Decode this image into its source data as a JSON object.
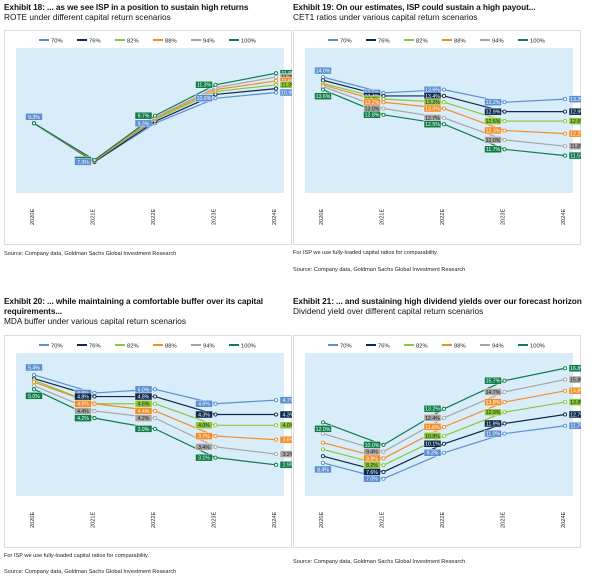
{
  "colors": {
    "70%": "#5b8fd1",
    "76%": "#0d2b4e",
    "82%": "#8cc63f",
    "88%": "#f28c28",
    "94%": "#a6a6a6",
    "100%": "#0e7d4a",
    "plot_bg": "#d9ecf9"
  },
  "legend_order": [
    "70%",
    "76%",
    "82%",
    "88%",
    "94%",
    "100%"
  ],
  "exhibits": [
    {
      "title": "Exhibit 18: ... as we see ISP in a position to sustain high returns",
      "subtitle": "ROTE under different capital return scenarios",
      "note": "",
      "source": "Source: Company data, Goldman Sachs Global Investment Research"
    },
    {
      "title": "Exhibit 19: On our estimates, ISP could sustain a high payout...",
      "subtitle": "CET1 ratios under various capital return scenarios",
      "note": "For ISP we use fully-loaded capital ratios for comparability.",
      "source": "Source: Company data, Goldman Sachs Global Investment Research"
    },
    {
      "title": "Exhibit 20: ... while maintaining a comfortable buffer over its capital requirements...",
      "subtitle": "MDA buffer under various capital return scenarios",
      "note": "For ISP we use fully-loaded capital ratios for comparability.",
      "source": "Source: Company data, Goldman Sachs Global Investment Research"
    },
    {
      "title": "Exhibit 21: ... and sustaining high dividend yields over our forecast horizon",
      "subtitle": "Dividend yield over different capital return scenarios",
      "note": "",
      "source": "Source: Company data, Goldman Sachs Global Investment Research"
    }
  ],
  "chart_data": [
    {
      "type": "line",
      "categories": [
        "2020E",
        "2021E",
        "2022E",
        "2023E",
        "2024E"
      ],
      "ylim": [
        6,
        13
      ],
      "series": [
        {
          "name": "70%",
          "values": [
            9.3,
            7.3,
            9.3,
            10.6,
            10.9
          ]
        },
        {
          "name": "76%",
          "values": [
            9.3,
            7.3,
            9.4,
            10.8,
            11.1
          ]
        },
        {
          "name": "82%",
          "values": [
            9.3,
            7.35,
            9.5,
            10.95,
            11.3
          ]
        },
        {
          "name": "88%",
          "values": [
            9.3,
            7.35,
            9.55,
            11.05,
            11.5
          ]
        },
        {
          "name": "94%",
          "values": [
            9.3,
            7.4,
            9.6,
            11.15,
            11.7
          ]
        },
        {
          "name": "100%",
          "values": [
            9.3,
            7.4,
            9.7,
            11.3,
            11.9
          ]
        }
      ],
      "labels": [
        {
          "series": "100%",
          "index": 3,
          "text": "11.3%"
        },
        {
          "series": "70%",
          "index": 3,
          "text": "10.6%"
        },
        {
          "series": "100%",
          "index": 2,
          "text": "9.7%"
        },
        {
          "series": "70%",
          "index": 2,
          "text": "9.3%"
        },
        {
          "series": "100%",
          "index": 1,
          "text": "7.4%"
        },
        {
          "series": "70%",
          "index": 1,
          "text": "7.3%"
        },
        {
          "series": "70%",
          "index": 0,
          "text": "9.3%"
        },
        {
          "series": "100%",
          "index": 4,
          "text": "11.9%"
        },
        {
          "series": "94%",
          "index": 4,
          "text": "11.7%"
        },
        {
          "series": "88%",
          "index": 4,
          "text": "11.5%"
        },
        {
          "series": "82%",
          "index": 4,
          "text": "11.3%"
        },
        {
          "series": "70%",
          "index": 4,
          "text": "10.9%"
        }
      ]
    },
    {
      "type": "line",
      "categories": [
        "2020E",
        "2021E",
        "2022E",
        "2023E",
        "2024E"
      ],
      "ylim": [
        10.5,
        14.8
      ],
      "series": [
        {
          "name": "70%",
          "values": [
            14.0,
            13.5,
            13.6,
            13.2,
            13.3
          ]
        },
        {
          "name": "76%",
          "values": [
            13.9,
            13.4,
            13.4,
            12.9,
            12.9
          ]
        },
        {
          "name": "82%",
          "values": [
            13.8,
            13.3,
            13.2,
            12.6,
            12.6
          ]
        },
        {
          "name": "88%",
          "values": [
            13.75,
            13.2,
            13.0,
            12.3,
            12.2
          ]
        },
        {
          "name": "94%",
          "values": [
            13.7,
            13.0,
            12.7,
            12.0,
            11.8
          ]
        },
        {
          "name": "100%",
          "values": [
            13.6,
            12.8,
            12.5,
            11.7,
            11.5
          ]
        }
      ],
      "labels": [
        {
          "series": "70%",
          "index": 0,
          "text": "14.0%"
        },
        {
          "series": "100%",
          "index": 0,
          "text": "13.6%"
        },
        {
          "series": "70%",
          "index": 1,
          "text": "13.5%"
        },
        {
          "series": "76%",
          "index": 1,
          "text": "13.4%"
        },
        {
          "series": "82%",
          "index": 1,
          "text": "13.3%"
        },
        {
          "series": "88%",
          "index": 1,
          "text": "13.2%"
        },
        {
          "series": "94%",
          "index": 1,
          "text": "13.0%"
        },
        {
          "series": "100%",
          "index": 1,
          "text": "12.8%"
        },
        {
          "series": "70%",
          "index": 2,
          "text": "13.6%"
        },
        {
          "series": "76%",
          "index": 2,
          "text": "13.4%"
        },
        {
          "series": "82%",
          "index": 2,
          "text": "13.2%"
        },
        {
          "series": "88%",
          "index": 2,
          "text": "13.0%"
        },
        {
          "series": "94%",
          "index": 2,
          "text": "12.7%"
        },
        {
          "series": "100%",
          "index": 2,
          "text": "12.5%"
        },
        {
          "series": "70%",
          "index": 3,
          "text": "13.2%"
        },
        {
          "series": "76%",
          "index": 3,
          "text": "12.9%"
        },
        {
          "series": "82%",
          "index": 3,
          "text": "12.6%"
        },
        {
          "series": "88%",
          "index": 3,
          "text": "12.3%"
        },
        {
          "series": "94%",
          "index": 3,
          "text": "12.0%"
        },
        {
          "series": "100%",
          "index": 3,
          "text": "11.7%"
        },
        {
          "series": "70%",
          "index": 4,
          "text": "13.3%"
        },
        {
          "series": "76%",
          "index": 4,
          "text": "12.9%"
        },
        {
          "series": "82%",
          "index": 4,
          "text": "12.6%"
        },
        {
          "series": "88%",
          "index": 4,
          "text": "12.2%"
        },
        {
          "series": "94%",
          "index": 4,
          "text": "11.8%"
        },
        {
          "series": "100%",
          "index": 4,
          "text": "11.5%"
        }
      ]
    },
    {
      "type": "line",
      "categories": [
        "2020E",
        "2021E",
        "2022E",
        "2023E",
        "2024E"
      ],
      "ylim": [
        2.2,
        5.9
      ],
      "series": [
        {
          "name": "70%",
          "values": [
            5.4,
            4.9,
            5.0,
            4.6,
            4.7
          ]
        },
        {
          "name": "76%",
          "values": [
            5.3,
            4.8,
            4.8,
            4.3,
            4.3
          ]
        },
        {
          "name": "82%",
          "values": [
            5.25,
            4.6,
            4.6,
            4.0,
            4.0
          ]
        },
        {
          "name": "88%",
          "values": [
            5.2,
            4.6,
            4.4,
            3.7,
            3.6
          ]
        },
        {
          "name": "94%",
          "values": [
            5.1,
            4.4,
            4.2,
            3.4,
            3.2
          ]
        },
        {
          "name": "100%",
          "values": [
            5.0,
            4.2,
            3.9,
            3.1,
            2.9
          ]
        }
      ],
      "labels": [
        {
          "series": "70%",
          "index": 0,
          "text": "5.4%"
        },
        {
          "series": "100%",
          "index": 0,
          "text": "5.0%"
        },
        {
          "series": "70%",
          "index": 1,
          "text": "4.9%"
        },
        {
          "series": "76%",
          "index": 1,
          "text": "4.8%"
        },
        {
          "series": "82%",
          "index": 1,
          "text": "4.6%"
        },
        {
          "series": "88%",
          "index": 1,
          "text": "4.6%"
        },
        {
          "series": "94%",
          "index": 1,
          "text": "4.4%"
        },
        {
          "series": "100%",
          "index": 1,
          "text": "4.2%"
        },
        {
          "series": "70%",
          "index": 2,
          "text": "5.0%"
        },
        {
          "series": "76%",
          "index": 2,
          "text": "4.8%"
        },
        {
          "series": "82%",
          "index": 2,
          "text": "4.6%"
        },
        {
          "series": "88%",
          "index": 2,
          "text": "4.4%"
        },
        {
          "series": "94%",
          "index": 2,
          "text": "4.2%"
        },
        {
          "series": "100%",
          "index": 2,
          "text": "3.9%"
        },
        {
          "series": "70%",
          "index": 3,
          "text": "4.6%"
        },
        {
          "series": "76%",
          "index": 3,
          "text": "4.3%"
        },
        {
          "series": "82%",
          "index": 3,
          "text": "4.0%"
        },
        {
          "series": "88%",
          "index": 3,
          "text": "3.7%"
        },
        {
          "series": "94%",
          "index": 3,
          "text": "3.4%"
        },
        {
          "series": "100%",
          "index": 3,
          "text": "3.1%"
        },
        {
          "series": "70%",
          "index": 4,
          "text": "4.7%"
        },
        {
          "series": "76%",
          "index": 4,
          "text": "4.3%"
        },
        {
          "series": "82%",
          "index": 4,
          "text": "4.0%"
        },
        {
          "series": "88%",
          "index": 4,
          "text": "3.6%"
        },
        {
          "series": "94%",
          "index": 4,
          "text": "3.2%"
        },
        {
          "series": "100%",
          "index": 4,
          "text": "2.9%"
        }
      ]
    },
    {
      "type": "line",
      "categories": [
        "2020E",
        "2021E",
        "2022E",
        "2023E",
        "2024E"
      ],
      "ylim": [
        6.0,
        17.8
      ],
      "series": [
        {
          "name": "70%",
          "values": [
            8.4,
            7.0,
            9.3,
            11.0,
            11.7
          ]
        },
        {
          "name": "76%",
          "values": [
            9.0,
            7.6,
            10.1,
            11.9,
            12.7
          ]
        },
        {
          "name": "82%",
          "values": [
            9.6,
            8.2,
            10.8,
            12.9,
            13.8
          ]
        },
        {
          "name": "88%",
          "values": [
            10.2,
            8.8,
            11.6,
            13.8,
            14.8
          ]
        },
        {
          "name": "94%",
          "values": [
            11.0,
            9.4,
            12.4,
            14.7,
            15.8
          ]
        },
        {
          "name": "100%",
          "values": [
            12.0,
            10.0,
            13.2,
            15.7,
            16.8
          ]
        }
      ],
      "labels": [
        {
          "series": "100%",
          "index": 0,
          "text": "12.0%"
        },
        {
          "series": "70%",
          "index": 0,
          "text": "8.4%"
        },
        {
          "series": "100%",
          "index": 1,
          "text": "10.0%"
        },
        {
          "series": "94%",
          "index": 1,
          "text": "9.4%"
        },
        {
          "series": "88%",
          "index": 1,
          "text": "8.8%"
        },
        {
          "series": "82%",
          "index": 1,
          "text": "8.2%"
        },
        {
          "series": "76%",
          "index": 1,
          "text": "7.6%"
        },
        {
          "series": "70%",
          "index": 1,
          "text": "7.0%"
        },
        {
          "series": "100%",
          "index": 2,
          "text": "13.2%"
        },
        {
          "series": "94%",
          "index": 2,
          "text": "12.4%"
        },
        {
          "series": "88%",
          "index": 2,
          "text": "11.6%"
        },
        {
          "series": "82%",
          "index": 2,
          "text": "10.8%"
        },
        {
          "series": "76%",
          "index": 2,
          "text": "10.1%"
        },
        {
          "series": "70%",
          "index": 2,
          "text": "9.3%"
        },
        {
          "series": "100%",
          "index": 3,
          "text": "15.7%"
        },
        {
          "series": "94%",
          "index": 3,
          "text": "14.7%"
        },
        {
          "series": "88%",
          "index": 3,
          "text": "13.8%"
        },
        {
          "series": "82%",
          "index": 3,
          "text": "12.9%"
        },
        {
          "series": "76%",
          "index": 3,
          "text": "11.9%"
        },
        {
          "series": "70%",
          "index": 3,
          "text": "11.0%"
        },
        {
          "series": "100%",
          "index": 4,
          "text": "16.8%"
        },
        {
          "series": "94%",
          "index": 4,
          "text": "15.8%"
        },
        {
          "series": "88%",
          "index": 4,
          "text": "14.8%"
        },
        {
          "series": "82%",
          "index": 4,
          "text": "13.8%"
        },
        {
          "series": "76%",
          "index": 4,
          "text": "12.7%"
        },
        {
          "series": "70%",
          "index": 4,
          "text": "11.7%"
        }
      ]
    }
  ]
}
